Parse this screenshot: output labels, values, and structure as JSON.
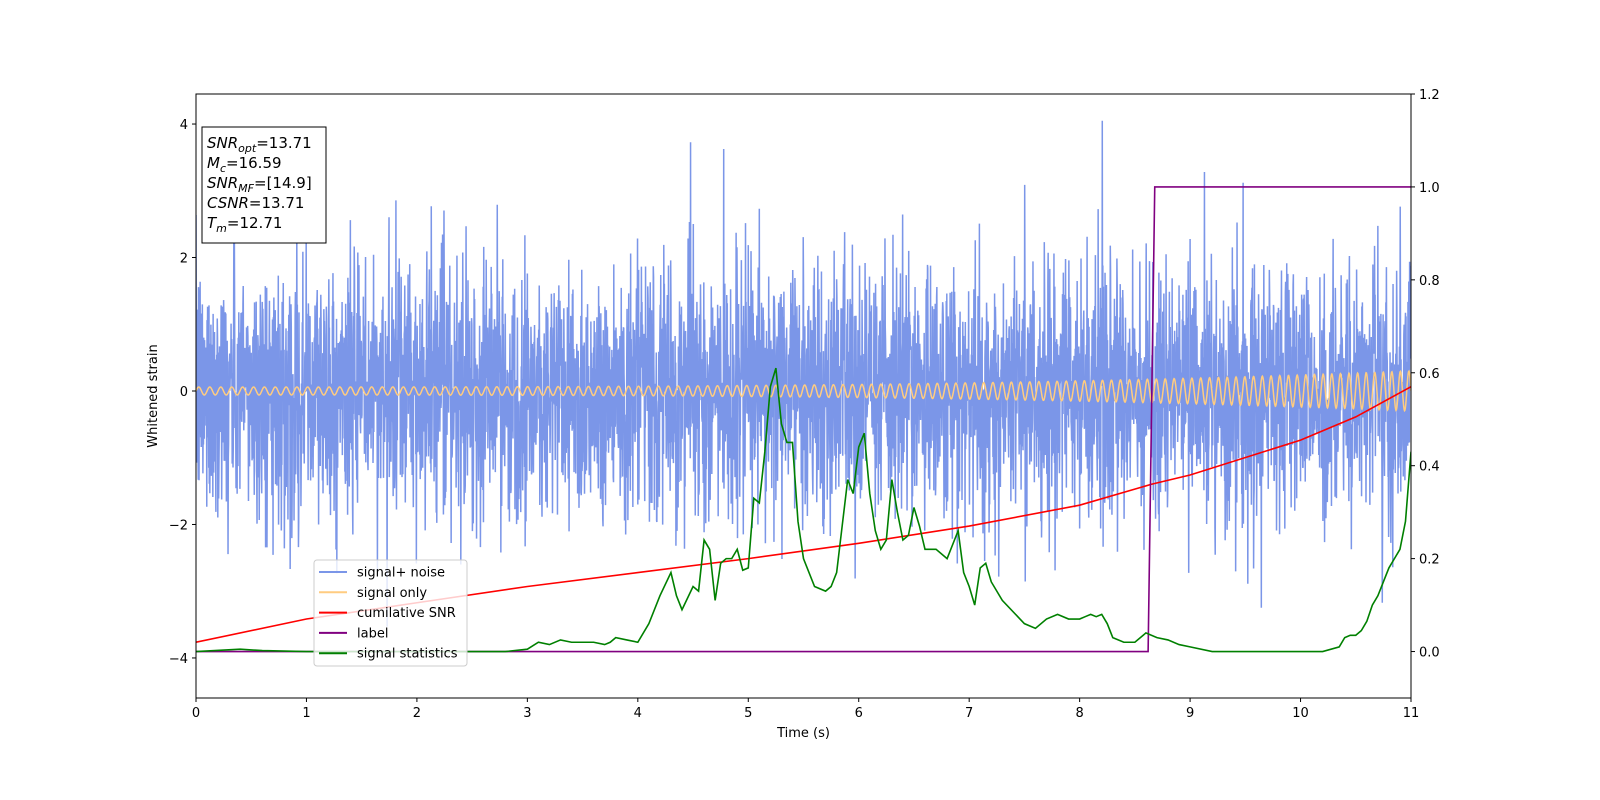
{
  "chart_data": {
    "type": "line",
    "title": "",
    "xlabel": "Time (s)",
    "ylabel": "Whitened strain",
    "xlim": [
      0,
      11
    ],
    "ylim": [
      -4.6,
      4.45
    ],
    "y2lim": [
      -0.1,
      1.2
    ],
    "x_ticks": [
      "0",
      "1",
      "2",
      "3",
      "4",
      "5",
      "6",
      "7",
      "8",
      "9",
      "10",
      "11"
    ],
    "y_ticks": [
      "−4",
      "−2",
      "0",
      "2",
      "4"
    ],
    "y2_ticks": [
      "0.0",
      "0.2",
      "0.4",
      "0.6",
      "0.8",
      "1.0",
      "1.2"
    ],
    "grid": false,
    "legend_position": "lower-left",
    "legend": [
      {
        "name": "signal+ noise",
        "color": "#7b96e8"
      },
      {
        "name": "signal only",
        "color": "#ffcc80"
      },
      {
        "name": "cumilative SNR",
        "color": "#ff0000"
      },
      {
        "name": "label",
        "color": "#800080"
      },
      {
        "name": "signal statistics",
        "color": "#008000"
      }
    ],
    "info_box": [
      {
        "base": "SNR",
        "sub": "opt",
        "value": "=13.71"
      },
      {
        "base": "M",
        "sub": "c",
        "value": "=16.59"
      },
      {
        "base": "SNR",
        "sub": "MF",
        "value": "=[14.9]"
      },
      {
        "base": "CSNR",
        "sub": "",
        "value": "=13.71"
      },
      {
        "base": "T",
        "sub": "m",
        "value": "=12.71"
      }
    ],
    "series": [
      {
        "name": "signal+ noise",
        "axis": "left",
        "description": "whitened noisy strain, std ~1",
        "std": 0.95
      },
      {
        "name": "signal only",
        "axis": "left",
        "amplitude_start": 0.06,
        "amplitude_end": 0.3
      },
      {
        "name": "cumilative SNR",
        "axis": "right",
        "x": [
          0,
          1,
          2,
          3,
          4,
          5,
          6,
          7,
          8,
          8.65,
          9,
          10,
          10.5,
          11
        ],
        "y": [
          0.02,
          0.07,
          0.105,
          0.14,
          0.17,
          0.2,
          0.233,
          0.27,
          0.315,
          0.36,
          0.38,
          0.455,
          0.505,
          0.57
        ]
      },
      {
        "name": "label",
        "axis": "right",
        "x": [
          0,
          8.62,
          8.68,
          11
        ],
        "y": [
          0.0,
          0.0,
          1.0,
          1.0
        ]
      },
      {
        "name": "signal statistics",
        "axis": "right",
        "x": [
          0,
          0.4,
          0.6,
          1,
          2,
          2.8,
          3.0,
          3.1,
          3.2,
          3.3,
          3.4,
          3.5,
          3.6,
          3.7,
          3.75,
          3.8,
          3.9,
          4.0,
          4.1,
          4.2,
          4.3,
          4.35,
          4.4,
          4.5,
          4.55,
          4.6,
          4.65,
          4.7,
          4.75,
          4.8,
          4.85,
          4.9,
          4.95,
          5.0,
          5.05,
          5.1,
          5.15,
          5.2,
          5.25,
          5.3,
          5.35,
          5.4,
          5.45,
          5.5,
          5.6,
          5.7,
          5.75,
          5.8,
          5.85,
          5.9,
          5.95,
          6.0,
          6.05,
          6.1,
          6.15,
          6.2,
          6.25,
          6.3,
          6.35,
          6.4,
          6.45,
          6.5,
          6.55,
          6.6,
          6.7,
          6.8,
          6.9,
          6.95,
          7.0,
          7.05,
          7.1,
          7.15,
          7.2,
          7.3,
          7.5,
          7.6,
          7.7,
          7.8,
          7.9,
          8.0,
          8.05,
          8.1,
          8.15,
          8.2,
          8.25,
          8.3,
          8.4,
          8.5,
          8.6,
          8.7,
          8.8,
          8.9,
          9.0,
          9.2,
          9.5,
          9.8,
          10.0,
          10.2,
          10.35,
          10.4,
          10.45,
          10.5,
          10.55,
          10.6,
          10.65,
          10.7,
          10.75,
          10.8,
          10.85,
          10.9,
          10.95,
          11.0
        ],
        "y": [
          0.0,
          0.005,
          0.002,
          0.0,
          0.0,
          0.0,
          0.005,
          0.02,
          0.015,
          0.025,
          0.02,
          0.02,
          0.02,
          0.015,
          0.02,
          0.03,
          0.025,
          0.02,
          0.06,
          0.12,
          0.17,
          0.12,
          0.09,
          0.14,
          0.13,
          0.24,
          0.22,
          0.11,
          0.19,
          0.2,
          0.2,
          0.22,
          0.175,
          0.18,
          0.33,
          0.32,
          0.43,
          0.57,
          0.61,
          0.49,
          0.45,
          0.45,
          0.28,
          0.2,
          0.14,
          0.13,
          0.14,
          0.17,
          0.27,
          0.37,
          0.34,
          0.44,
          0.47,
          0.34,
          0.26,
          0.22,
          0.24,
          0.37,
          0.3,
          0.24,
          0.25,
          0.31,
          0.27,
          0.22,
          0.22,
          0.2,
          0.26,
          0.17,
          0.14,
          0.1,
          0.18,
          0.19,
          0.15,
          0.11,
          0.06,
          0.05,
          0.07,
          0.08,
          0.07,
          0.07,
          0.075,
          0.08,
          0.075,
          0.08,
          0.06,
          0.03,
          0.02,
          0.02,
          0.04,
          0.03,
          0.025,
          0.015,
          0.01,
          0.0,
          0.0,
          0.0,
          0.0,
          0.0,
          0.01,
          0.03,
          0.035,
          0.035,
          0.045,
          0.065,
          0.1,
          0.12,
          0.15,
          0.18,
          0.2,
          0.22,
          0.28,
          0.43
        ]
      }
    ]
  }
}
